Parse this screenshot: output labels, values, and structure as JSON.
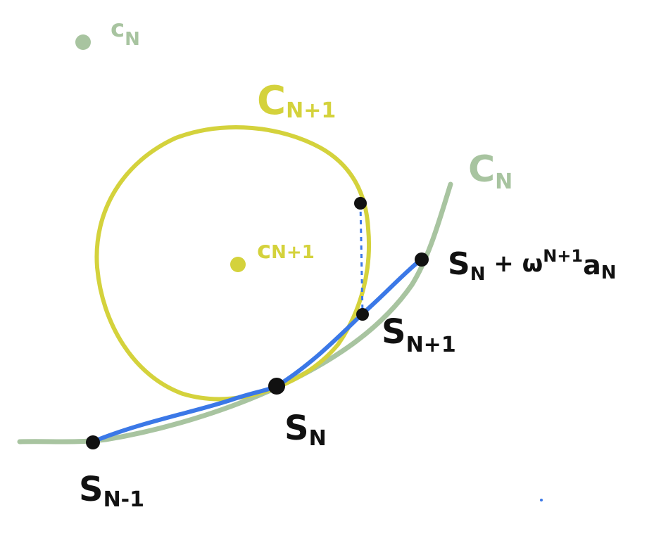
{
  "colors": {
    "curve_prev": "#a8c4a0",
    "curve_next": "#d4d23c",
    "path": "#3b78e7",
    "points": "#111111"
  },
  "labels": {
    "c_n_point": "c",
    "c_n_point_sub": "N",
    "c_n1_point": "c",
    "c_n1_point_sub": "N+1",
    "circle_n1": "C",
    "circle_n1_sub": "N+1",
    "circle_n": "C",
    "circle_n_sub": "N",
    "s_n_minus_1": "S",
    "s_n_minus_1_sub": "N-1",
    "s_n": "S",
    "s_n_sub": "N",
    "s_n_plus_1": "S",
    "s_n_plus_1_sub": "N+1",
    "s_n_plus_w_base": "S",
    "s_n_plus_w_sub": "N",
    "s_n_plus_w_plus": " + ω",
    "s_n_plus_w_sup": "N+1",
    "s_n_plus_w_a": "a",
    "s_n_plus_w_a_sub": "N"
  }
}
